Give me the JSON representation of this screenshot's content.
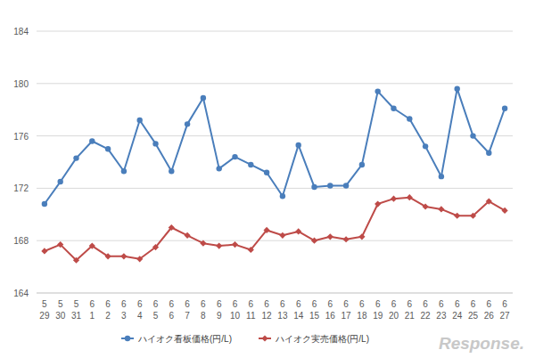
{
  "chart_data": {
    "type": "line",
    "categories": [
      "5\n29",
      "5\n30",
      "5\n31",
      "6\n1",
      "6\n2",
      "6\n3",
      "6\n4",
      "6\n5",
      "6\n6",
      "6\n7",
      "6\n8",
      "6\n9",
      "6\n10",
      "6\n11",
      "6\n12",
      "6\n13",
      "6\n14",
      "6\n15",
      "6\n16",
      "6\n17",
      "6\n18",
      "6\n19",
      "6\n20",
      "6\n21",
      "6\n22",
      "6\n23",
      "6\n24",
      "6\n25",
      "6\n26",
      "6\n27"
    ],
    "series": [
      {
        "name": "ハイオク看板価格(円/L)",
        "color": "#4a7ebb",
        "marker": "circle",
        "values": [
          170.8,
          172.5,
          174.3,
          175.6,
          175.0,
          173.3,
          177.2,
          175.4,
          173.3,
          176.9,
          178.9,
          173.5,
          174.4,
          173.8,
          173.2,
          171.4,
          175.3,
          172.1,
          172.2,
          172.2,
          173.8,
          179.4,
          178.1,
          177.3,
          175.2,
          172.9,
          179.6,
          176.0,
          174.7,
          178.1
        ]
      },
      {
        "name": "ハイオク実売価格(円/L)",
        "color": "#be4b48",
        "marker": "diamond",
        "values": [
          167.2,
          167.7,
          166.5,
          167.6,
          166.8,
          166.8,
          166.6,
          167.5,
          169.0,
          168.4,
          167.8,
          167.6,
          167.7,
          167.3,
          168.8,
          168.4,
          168.7,
          168.0,
          168.3,
          168.1,
          168.3,
          170.8,
          171.2,
          171.3,
          170.6,
          170.4,
          169.9,
          169.9,
          171.0,
          170.3
        ]
      }
    ],
    "ylim": [
      164,
      184
    ],
    "yticks": [
      164,
      168,
      172,
      176,
      180,
      184
    ],
    "grid": true,
    "legend": "bottom",
    "annotations": [
      "Response."
    ]
  }
}
